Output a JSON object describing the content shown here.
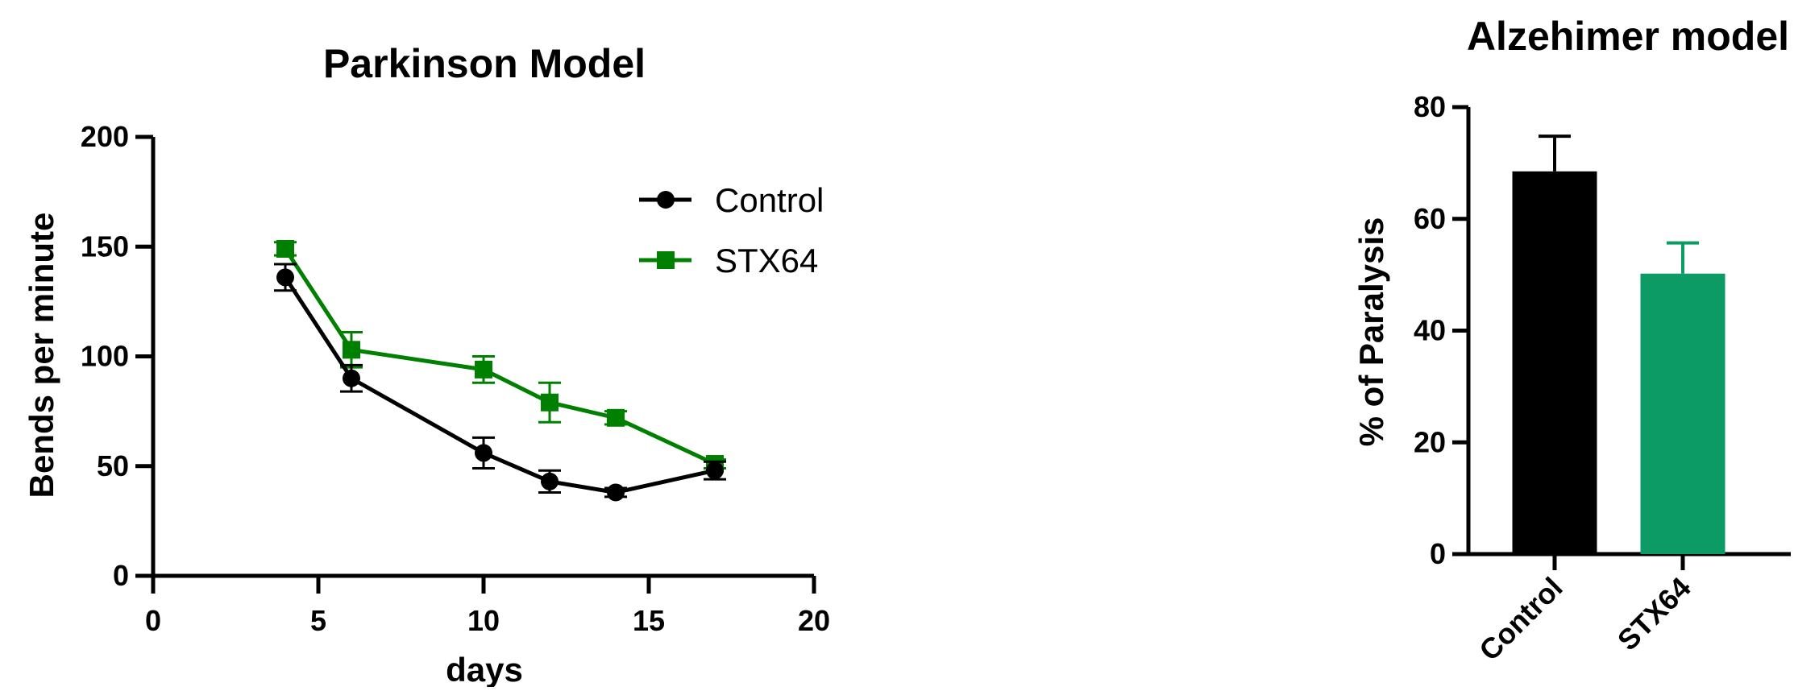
{
  "chart_data": [
    {
      "type": "line",
      "title": "Parkinson Model",
      "xlabel": "days",
      "ylabel": "Bends per minute",
      "xlim": [
        0,
        20
      ],
      "ylim": [
        0,
        200
      ],
      "xticks": [
        "0",
        "5",
        "10",
        "15",
        "20"
      ],
      "yticks": [
        "0",
        "50",
        "100",
        "150",
        "200"
      ],
      "legend_position": "top-right",
      "series": [
        {
          "name": "Control",
          "color": "#000000",
          "marker": "circle",
          "x": [
            4,
            6,
            10,
            12,
            14,
            17
          ],
          "y": [
            136,
            90,
            56,
            43,
            38,
            48
          ],
          "error": [
            6,
            6,
            7,
            5,
            2,
            4
          ]
        },
        {
          "name": "STX64",
          "color": "#008000",
          "marker": "square",
          "x": [
            4,
            6,
            10,
            12,
            14,
            17
          ],
          "y": [
            149,
            103,
            94,
            79,
            72,
            51
          ],
          "error": [
            3,
            8,
            6,
            9,
            3,
            2
          ]
        }
      ]
    },
    {
      "type": "bar",
      "title": "Alzehimer model",
      "xlabel": "",
      "ylabel": "% of Paralysis",
      "ylim": [
        0,
        80
      ],
      "yticks": [
        "0",
        "20",
        "40",
        "60",
        "80"
      ],
      "categories": [
        "Control",
        "STX64"
      ],
      "values": [
        68.5,
        50.2
      ],
      "errors": [
        6.3,
        5.5
      ],
      "colors": [
        "#000000",
        "#0c9a65"
      ]
    }
  ]
}
